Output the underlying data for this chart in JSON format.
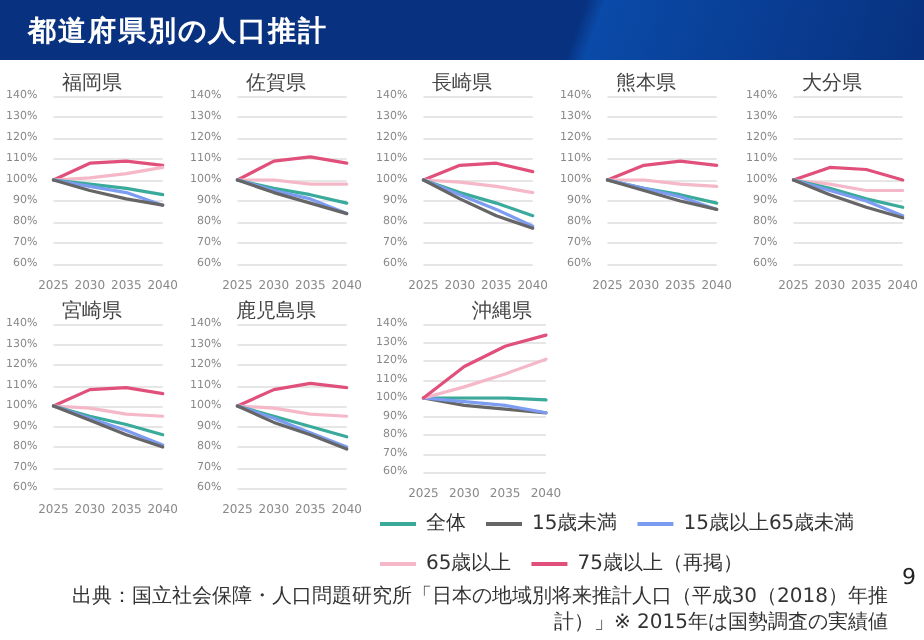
{
  "chart_data": [
    {
      "type": "line",
      "title": "福岡県",
      "annotations": [
        "都道府県別の人口推計"
      ],
      "categories": [
        "2025",
        "2030",
        "2035",
        "2040"
      ],
      "ylim": [
        60,
        140
      ],
      "yticks": [
        {
          "value": 60,
          "label": "60%"
        },
        {
          "value": 70,
          "label": "70%"
        },
        {
          "value": 80,
          "label": "80%"
        },
        {
          "value": 90,
          "label": "90%"
        },
        {
          "value": 100,
          "label": "100%"
        },
        {
          "value": 110,
          "label": "110%"
        },
        {
          "value": 120,
          "label": "120%"
        },
        {
          "value": 130,
          "label": "130%"
        },
        {
          "value": 140,
          "label": "140%"
        }
      ],
      "grid": "y",
      "legend": false,
      "series": [
        {
          "color": "#e0507a",
          "values": [
            100,
            108,
            109,
            107
          ]
        },
        {
          "color": "#f5b8c8",
          "values": [
            100,
            101,
            103,
            106
          ]
        },
        {
          "color": "#3aaa9b",
          "values": [
            100,
            98,
            96,
            93
          ]
        },
        {
          "color": "#7b9cf0",
          "values": [
            100,
            97,
            94,
            88
          ]
        },
        {
          "color": "#666666",
          "values": [
            100,
            95,
            91,
            88
          ]
        }
      ]
    },
    {
      "type": "line",
      "title": "佐賀県",
      "categories": [
        "2025",
        "2030",
        "2035",
        "2040"
      ],
      "ylim": [
        60,
        140
      ],
      "yticks": [
        {
          "value": 60,
          "label": "60%"
        },
        {
          "value": 70,
          "label": "70%"
        },
        {
          "value": 80,
          "label": "80%"
        },
        {
          "value": 90,
          "label": "90%"
        },
        {
          "value": 100,
          "label": "100%"
        },
        {
          "value": 110,
          "label": "110%"
        },
        {
          "value": 120,
          "label": "120%"
        },
        {
          "value": 130,
          "label": "130%"
        },
        {
          "value": 140,
          "label": "140%"
        }
      ],
      "grid": "y",
      "legend": false,
      "series": [
        {
          "color": "#e0507a",
          "values": [
            100,
            109,
            111,
            108
          ]
        },
        {
          "color": "#f5b8c8",
          "values": [
            100,
            100,
            98,
            98
          ]
        },
        {
          "color": "#3aaa9b",
          "values": [
            100,
            96,
            93,
            89
          ]
        },
        {
          "color": "#7b9cf0",
          "values": [
            100,
            95,
            91,
            84
          ]
        },
        {
          "color": "#666666",
          "values": [
            100,
            94,
            89,
            84
          ]
        }
      ]
    },
    {
      "type": "line",
      "title": "長崎県",
      "categories": [
        "2025",
        "2030",
        "2035",
        "2040"
      ],
      "ylim": [
        60,
        140
      ],
      "yticks": [
        {
          "value": 60,
          "label": "60%"
        },
        {
          "value": 70,
          "label": "70%"
        },
        {
          "value": 80,
          "label": "80%"
        },
        {
          "value": 90,
          "label": "90%"
        },
        {
          "value": 100,
          "label": "100%"
        },
        {
          "value": 110,
          "label": "110%"
        },
        {
          "value": 120,
          "label": "120%"
        },
        {
          "value": 130,
          "label": "130%"
        },
        {
          "value": 140,
          "label": "140%"
        }
      ],
      "grid": "y",
      "legend": false,
      "series": [
        {
          "color": "#e0507a",
          "values": [
            100,
            107,
            108,
            104
          ]
        },
        {
          "color": "#f5b8c8",
          "values": [
            100,
            99,
            97,
            94
          ]
        },
        {
          "color": "#3aaa9b",
          "values": [
            100,
            94,
            89,
            83
          ]
        },
        {
          "color": "#7b9cf0",
          "values": [
            100,
            93,
            86,
            78
          ]
        },
        {
          "color": "#666666",
          "values": [
            100,
            91,
            83,
            77
          ]
        }
      ]
    },
    {
      "type": "line",
      "title": "熊本県",
      "categories": [
        "2025",
        "2030",
        "2035",
        "2040"
      ],
      "ylim": [
        60,
        140
      ],
      "yticks": [
        {
          "value": 60,
          "label": "60%"
        },
        {
          "value": 70,
          "label": "70%"
        },
        {
          "value": 80,
          "label": "80%"
        },
        {
          "value": 90,
          "label": "90%"
        },
        {
          "value": 100,
          "label": "100%"
        },
        {
          "value": 110,
          "label": "110%"
        },
        {
          "value": 120,
          "label": "120%"
        },
        {
          "value": 130,
          "label": "130%"
        },
        {
          "value": 140,
          "label": "140%"
        }
      ],
      "grid": "y",
      "legend": false,
      "series": [
        {
          "color": "#e0507a",
          "values": [
            100,
            107,
            109,
            107
          ]
        },
        {
          "color": "#f5b8c8",
          "values": [
            100,
            100,
            98,
            97
          ]
        },
        {
          "color": "#3aaa9b",
          "values": [
            100,
            96,
            93,
            89
          ]
        },
        {
          "color": "#7b9cf0",
          "values": [
            100,
            96,
            92,
            86
          ]
        },
        {
          "color": "#666666",
          "values": [
            100,
            95,
            90,
            86
          ]
        }
      ]
    },
    {
      "type": "line",
      "title": "大分県",
      "categories": [
        "2025",
        "2030",
        "2035",
        "2040"
      ],
      "ylim": [
        60,
        140
      ],
      "yticks": [
        {
          "value": 60,
          "label": "60%"
        },
        {
          "value": 70,
          "label": "70%"
        },
        {
          "value": 80,
          "label": "80%"
        },
        {
          "value": 90,
          "label": "90%"
        },
        {
          "value": 100,
          "label": "100%"
        },
        {
          "value": 110,
          "label": "110%"
        },
        {
          "value": 120,
          "label": "120%"
        },
        {
          "value": 130,
          "label": "130%"
        },
        {
          "value": 140,
          "label": "140%"
        }
      ],
      "grid": "y",
      "legend": false,
      "series": [
        {
          "color": "#e0507a",
          "values": [
            100,
            106,
            105,
            100
          ]
        },
        {
          "color": "#f5b8c8",
          "values": [
            100,
            98,
            95,
            95
          ]
        },
        {
          "color": "#3aaa9b",
          "values": [
            100,
            96,
            91,
            87
          ]
        },
        {
          "color": "#7b9cf0",
          "values": [
            100,
            95,
            90,
            83
          ]
        },
        {
          "color": "#666666",
          "values": [
            100,
            93,
            87,
            82
          ]
        }
      ]
    },
    {
      "type": "line",
      "title": "宮崎県",
      "categories": [
        "2025",
        "2030",
        "2035",
        "2040"
      ],
      "ylim": [
        60,
        140
      ],
      "yticks": [
        {
          "value": 60,
          "label": "60%"
        },
        {
          "value": 70,
          "label": "70%"
        },
        {
          "value": 80,
          "label": "80%"
        },
        {
          "value": 90,
          "label": "90%"
        },
        {
          "value": 100,
          "label": "100%"
        },
        {
          "value": 110,
          "label": "110%"
        },
        {
          "value": 120,
          "label": "120%"
        },
        {
          "value": 130,
          "label": "130%"
        },
        {
          "value": 140,
          "label": "140%"
        }
      ],
      "grid": "y",
      "legend": false,
      "series": [
        {
          "color": "#e0507a",
          "values": [
            100,
            108,
            109,
            106
          ]
        },
        {
          "color": "#f5b8c8",
          "values": [
            100,
            99,
            96,
            95
          ]
        },
        {
          "color": "#3aaa9b",
          "values": [
            100,
            95,
            91,
            86
          ]
        },
        {
          "color": "#7b9cf0",
          "values": [
            100,
            94,
            88,
            81
          ]
        },
        {
          "color": "#666666",
          "values": [
            100,
            93,
            86,
            80
          ]
        }
      ]
    },
    {
      "type": "line",
      "title": "鹿児島県",
      "categories": [
        "2025",
        "2030",
        "2035",
        "2040"
      ],
      "ylim": [
        60,
        140
      ],
      "yticks": [
        {
          "value": 60,
          "label": "60%"
        },
        {
          "value": 70,
          "label": "70%"
        },
        {
          "value": 80,
          "label": "80%"
        },
        {
          "value": 90,
          "label": "90%"
        },
        {
          "value": 100,
          "label": "100%"
        },
        {
          "value": 110,
          "label": "110%"
        },
        {
          "value": 120,
          "label": "120%"
        },
        {
          "value": 130,
          "label": "130%"
        },
        {
          "value": 140,
          "label": "140%"
        }
      ],
      "grid": "y",
      "legend": false,
      "series": [
        {
          "color": "#e0507a",
          "values": [
            100,
            108,
            111,
            109
          ]
        },
        {
          "color": "#f5b8c8",
          "values": [
            100,
            99,
            96,
            95
          ]
        },
        {
          "color": "#3aaa9b",
          "values": [
            100,
            95,
            90,
            85
          ]
        },
        {
          "color": "#7b9cf0",
          "values": [
            100,
            94,
            87,
            80
          ]
        },
        {
          "color": "#666666",
          "values": [
            100,
            92,
            86,
            79
          ]
        }
      ]
    },
    {
      "type": "line",
      "title": "沖縄県",
      "annotations": [
        "出典：国立社会保障・人口問題研究所「日本の地域別将来推計人口（平成30（2018）年推計）」※ 2015年は国勢調査の実績値",
        "9"
      ],
      "categories": [
        "2025",
        "2030",
        "2035",
        "2040"
      ],
      "ylim": [
        60,
        140
      ],
      "yticks": [
        {
          "value": 60,
          "label": "60%"
        },
        {
          "value": 70,
          "label": "70%"
        },
        {
          "value": 80,
          "label": "80%"
        },
        {
          "value": 90,
          "label": "90%"
        },
        {
          "value": 100,
          "label": "100%"
        },
        {
          "value": 110,
          "label": "110%"
        },
        {
          "value": 120,
          "label": "120%"
        },
        {
          "value": 130,
          "label": "130%"
        },
        {
          "value": 140,
          "label": "140%"
        }
      ],
      "grid": "y",
      "legend": "bottom",
      "series": [
        {
          "name": "全体",
          "color": "#3aaa9b",
          "values": [
            100,
            100,
            100,
            99
          ]
        },
        {
          "name": "15歳未満",
          "color": "#666666",
          "values": [
            100,
            96,
            94,
            92
          ]
        },
        {
          "name": "15歳以上65歳未満",
          "color": "#7b9cf0",
          "values": [
            100,
            98,
            96,
            92
          ]
        },
        {
          "name": "65歳以上",
          "color": "#f5b8c8",
          "values": [
            100,
            106,
            113,
            121
          ]
        },
        {
          "name": "75歳以上（再掲）",
          "color": "#e0507a",
          "values": [
            100,
            117,
            128,
            134
          ]
        }
      ]
    }
  ]
}
